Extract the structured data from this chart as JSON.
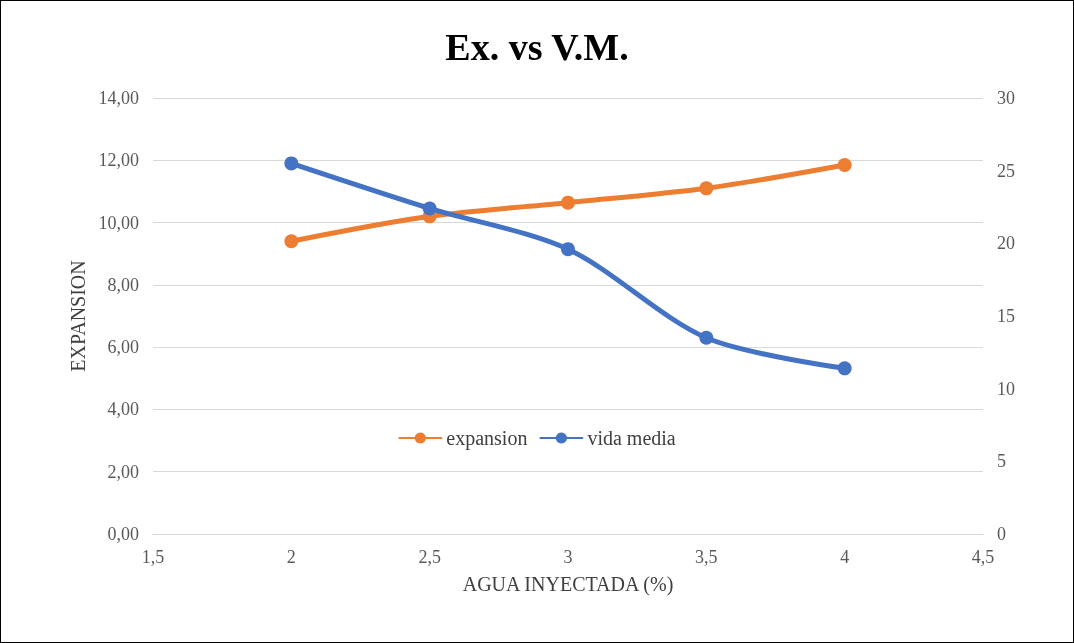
{
  "chart_data": {
    "type": "line",
    "title": "Ex. vs V.M.",
    "xlabel": "AGUA INYECTADA (%)",
    "ylabel": "EXPANSION",
    "x": [
      2,
      2.5,
      3,
      3.5,
      4
    ],
    "series": [
      {
        "name": "expansion",
        "color": "#ed7d31",
        "values": [
          9.4,
          10.2,
          10.64,
          11.1,
          11.85
        ]
      },
      {
        "name": "vida media",
        "color": "#4472c4",
        "values": [
          25.5,
          22.4,
          19.6,
          13.5,
          11.4
        ],
        "axis": "y2"
      }
    ],
    "xlim": [
      1.5,
      4.5
    ],
    "xticks": [
      {
        "value": 1.5,
        "label": "1,5"
      },
      2,
      {
        "value": 2.5,
        "label": "2,5"
      },
      3,
      {
        "value": 3.5,
        "label": "3,5"
      },
      4,
      {
        "value": 4.5,
        "label": "4,5"
      }
    ],
    "ylim": [
      0,
      14
    ],
    "yticks": [
      {
        "value": 0,
        "label": "0,00"
      },
      {
        "value": 2,
        "label": "2,00"
      },
      {
        "value": 4,
        "label": "4,00"
      },
      {
        "value": 6,
        "label": "6,00"
      },
      {
        "value": 8,
        "label": "8,00"
      },
      {
        "value": 10,
        "label": "10,00"
      },
      {
        "value": 12,
        "label": "12,00"
      },
      {
        "value": 14,
        "label": "14,00"
      }
    ],
    "y2lim": [
      0,
      30
    ],
    "y2ticks": [
      0,
      5,
      10,
      15,
      20,
      25,
      30
    ],
    "grid": "y",
    "legend": "bottom",
    "marker": "circle",
    "line_style": "solid"
  }
}
